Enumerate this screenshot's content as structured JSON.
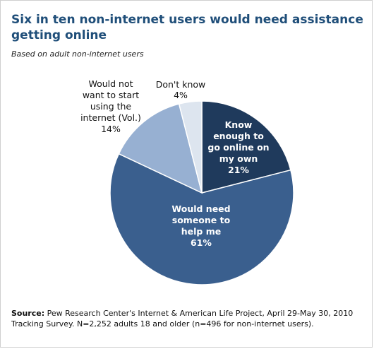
{
  "title": "Six in ten non-internet users would need assistance getting online",
  "subtitle": "Based on  adult non-internet users",
  "source_label": "Source:",
  "source_text": " Pew Research Center's Internet & American Life Project, April 29-May 30, 2010 Tracking Survey. N=2,252 adults 18 and older (n=496 for non-internet users).",
  "chart_data": {
    "type": "pie",
    "slices": [
      {
        "label_lines": [
          "Know",
          "enough to",
          "go online  on",
          "my own",
          "21%"
        ],
        "value": 21,
        "color": "#1f3a5c"
      },
      {
        "label_lines": [
          "Would need",
          "someone to",
          "help me",
          "61%"
        ],
        "value": 61,
        "color": "#3a5f8e"
      },
      {
        "label_lines": [
          "Would not",
          "want to start",
          "using the",
          "internet (Vol.)",
          "14%"
        ],
        "value": 14,
        "color": "#97b0d2"
      },
      {
        "label_lines": [
          "Don't know",
          "4%"
        ],
        "value": 4,
        "color": "#dde5ef"
      }
    ]
  }
}
